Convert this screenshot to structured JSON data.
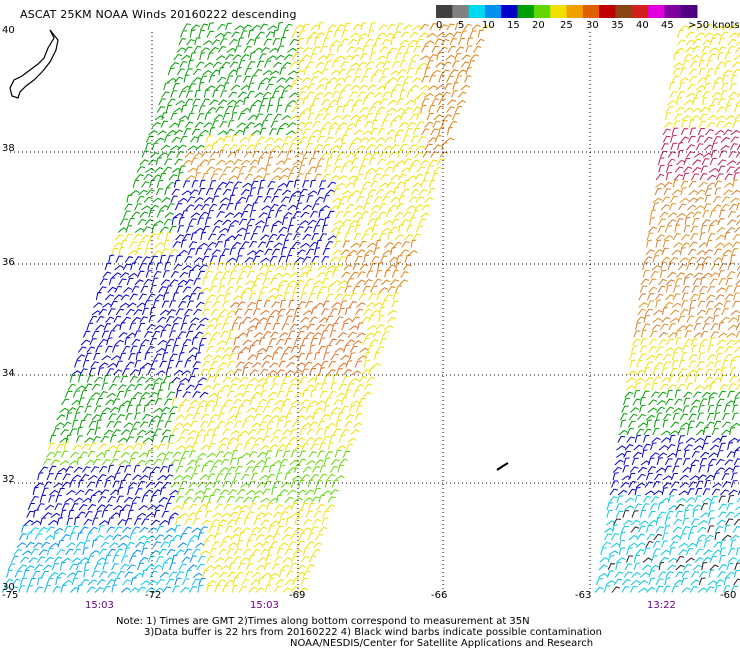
{
  "header": {
    "title": "ASCAT 25KM NOAA Winds 20160222 descending"
  },
  "legend": {
    "labels": [
      "0",
      "5",
      "10",
      "15",
      "20",
      "25",
      "30",
      "35",
      "40",
      "45",
      ">50 knots"
    ],
    "colors": [
      "#404040",
      "#808080",
      "#00d8f0",
      "#0090f0",
      "#0000c8",
      "#00a000",
      "#60d800",
      "#f0e000",
      "#f0a000",
      "#e06000",
      "#c00000",
      "#8b4513",
      "#d02020",
      "#e000e0",
      "#8000a0",
      "#500080"
    ]
  },
  "axes": {
    "lat_labels": [
      "40",
      "38",
      "36",
      "34",
      "32",
      "30"
    ],
    "lon_labels": [
      "-75",
      "-72",
      "-69",
      "-66",
      "-63",
      "-60"
    ]
  },
  "times": [
    "15:03",
    "15:03",
    "13:22"
  ],
  "notes": {
    "line1": "Note: 1) Times are GMT 2)Times along bottom correspond to measurement at 35N",
    "line2": "3)Data buffer is 22 hrs from 20160222 4) Black wind barbs indicate possible contamination",
    "line3": "NOAA/NESDIS/Center for Satellite Applications and Research"
  }
}
